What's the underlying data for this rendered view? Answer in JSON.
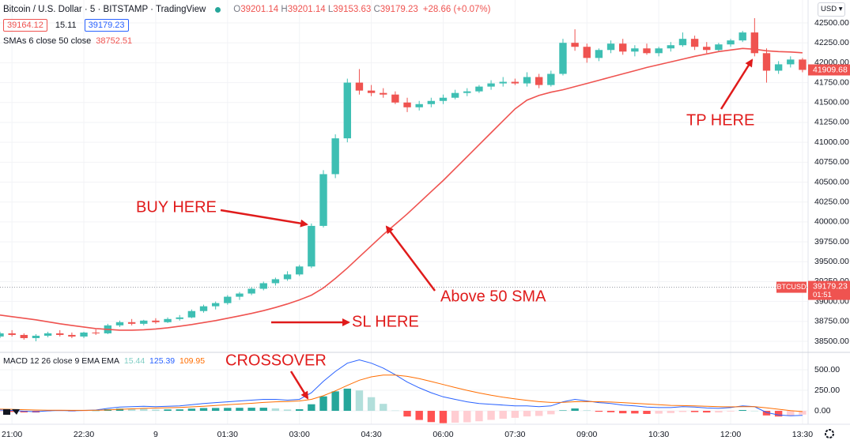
{
  "header": {
    "title": "Bitcoin / U.S. Dollar · 5 · BITSTAMP · TradingView",
    "ohlc": [
      [
        "O",
        "39201.14"
      ],
      [
        "H",
        "39201.14"
      ],
      [
        "L",
        "39153.63"
      ],
      [
        "C",
        "39179.23"
      ]
    ],
    "change": "+28.66 (+0.07%)",
    "bid": 39164.12,
    "spread": 15.11,
    "ask": 39179.23,
    "currency": "USD"
  },
  "chart_data": [
    {
      "type": "candlestick",
      "up_color": "#3ebfb3",
      "down_color": "#ef5350",
      "grid": true,
      "xlim": [
        -3,
        199.4
      ],
      "x": [
        -3,
        0,
        3,
        6,
        9,
        12,
        15,
        18,
        21,
        24,
        27,
        30,
        33,
        36,
        39,
        42,
        45,
        48,
        51,
        54,
        57,
        60,
        63,
        66,
        69,
        72,
        75,
        78,
        81,
        84,
        87,
        90,
        93,
        96,
        99,
        102,
        105,
        108,
        111,
        114,
        117,
        120,
        123,
        126,
        129,
        132,
        135,
        138,
        141,
        144,
        147,
        150,
        153,
        156,
        159,
        162,
        165,
        168,
        171,
        174,
        177,
        180,
        183,
        186,
        189,
        192,
        195,
        198
      ],
      "xticks": [
        {
          "value": 0,
          "label": "21:00"
        },
        {
          "value": 18,
          "label": "22:30"
        },
        {
          "value": 36,
          "label": "9"
        },
        {
          "value": 54,
          "label": "01:30"
        },
        {
          "value": 72,
          "label": "03:00"
        },
        {
          "value": 90,
          "label": "04:30"
        },
        {
          "value": 108,
          "label": "06:00"
        },
        {
          "value": 126,
          "label": "07:30"
        },
        {
          "value": 144,
          "label": "09:00"
        },
        {
          "value": 162,
          "label": "10:30"
        },
        {
          "value": 180,
          "label": "12:00"
        },
        {
          "value": 198,
          "label": "13:30"
        }
      ],
      "ylim": [
        38371,
        42788
      ],
      "yticks": [
        {
          "value": 38500,
          "label": "38500.00"
        },
        {
          "value": 38750,
          "label": "38750.00"
        },
        {
          "value": 39000,
          "label": "39000.00"
        },
        {
          "value": 39250,
          "label": "39250.00"
        },
        {
          "value": 39500,
          "label": "39500.00"
        },
        {
          "value": 39750,
          "label": "39750.00"
        },
        {
          "value": 40000,
          "label": "40000.00"
        },
        {
          "value": 40250,
          "label": "40250.00"
        },
        {
          "value": 40500,
          "label": "40500.00"
        },
        {
          "value": 40750,
          "label": "40750.00"
        },
        {
          "value": 41000,
          "label": "41000.00"
        },
        {
          "value": 41250,
          "label": "41250.00"
        },
        {
          "value": 41500,
          "label": "41500.00"
        },
        {
          "value": 41750,
          "label": "41750.00"
        },
        {
          "value": 42000,
          "label": "42000.00"
        },
        {
          "value": 42250,
          "label": "42250.00"
        },
        {
          "value": 42500,
          "label": "42500.00"
        }
      ],
      "candles": [
        [
          38560,
          38620,
          38540,
          38600
        ],
        [
          38600,
          38640,
          38560,
          38580
        ],
        [
          38580,
          38600,
          38520,
          38540
        ],
        [
          38540,
          38590,
          38500,
          38570
        ],
        [
          38570,
          38620,
          38550,
          38600
        ],
        [
          38600,
          38640,
          38560,
          38580
        ],
        [
          38580,
          38610,
          38540,
          38560
        ],
        [
          38560,
          38620,
          38540,
          38610
        ],
        [
          38610,
          38650,
          38580,
          38600
        ],
        [
          38600,
          38720,
          38590,
          38700
        ],
        [
          38700,
          38760,
          38680,
          38740
        ],
        [
          38740,
          38780,
          38700,
          38720
        ],
        [
          38720,
          38770,
          38700,
          38760
        ],
        [
          38760,
          38790,
          38720,
          38740
        ],
        [
          38740,
          38800,
          38730,
          38780
        ],
        [
          38780,
          38830,
          38760,
          38800
        ],
        [
          38800,
          38900,
          38790,
          38880
        ],
        [
          38880,
          38960,
          38860,
          38940
        ],
        [
          38940,
          39000,
          38900,
          38980
        ],
        [
          38980,
          39080,
          38960,
          39060
        ],
        [
          39060,
          39120,
          39020,
          39100
        ],
        [
          39100,
          39180,
          39080,
          39160
        ],
        [
          39160,
          39250,
          39140,
          39230
        ],
        [
          39230,
          39300,
          39200,
          39280
        ],
        [
          39280,
          39380,
          39260,
          39340
        ],
        [
          39340,
          39460,
          39320,
          39440
        ],
        [
          39440,
          39980,
          39420,
          39950
        ],
        [
          39950,
          40650,
          39930,
          40600
        ],
        [
          40600,
          41100,
          40550,
          41050
        ],
        [
          41050,
          41800,
          41000,
          41750
        ],
        [
          41750,
          41920,
          41600,
          41650
        ],
        [
          41650,
          41720,
          41580,
          41620
        ],
        [
          41620,
          41680,
          41560,
          41600
        ],
        [
          41600,
          41640,
          41480,
          41500
        ],
        [
          41500,
          41560,
          41380,
          41440
        ],
        [
          41440,
          41520,
          41400,
          41480
        ],
        [
          41480,
          41560,
          41440,
          41520
        ],
        [
          41520,
          41600,
          41480,
          41560
        ],
        [
          41560,
          41660,
          41540,
          41620
        ],
        [
          41620,
          41680,
          41580,
          41640
        ],
        [
          41640,
          41720,
          41620,
          41700
        ],
        [
          41700,
          41780,
          41660,
          41740
        ],
        [
          41740,
          41820,
          41700,
          41760
        ],
        [
          41760,
          41800,
          41720,
          41740
        ],
        [
          41740,
          41880,
          41700,
          41820
        ],
        [
          41820,
          41860,
          41680,
          41720
        ],
        [
          41720,
          41900,
          41700,
          41860
        ],
        [
          41860,
          42300,
          41840,
          42250
        ],
        [
          42250,
          42420,
          42150,
          42200
        ],
        [
          42200,
          42240,
          42000,
          42060
        ],
        [
          42060,
          42180,
          42020,
          42160
        ],
        [
          42160,
          42280,
          42120,
          42240
        ],
        [
          42240,
          42300,
          42100,
          42140
        ],
        [
          42140,
          42220,
          42080,
          42180
        ],
        [
          42180,
          42240,
          42100,
          42120
        ],
        [
          42120,
          42200,
          42080,
          42180
        ],
        [
          42180,
          42260,
          42140,
          42220
        ],
        [
          42220,
          42380,
          42200,
          42300
        ],
        [
          42300,
          42340,
          42160,
          42200
        ],
        [
          42200,
          42260,
          42120,
          42160
        ],
        [
          42160,
          42250,
          42140,
          42230
        ],
        [
          42230,
          42300,
          42200,
          42280
        ],
        [
          42280,
          42400,
          42260,
          42380
        ],
        [
          42380,
          42560,
          42080,
          42120
        ],
        [
          42120,
          42180,
          41750,
          41900
        ],
        [
          41900,
          42020,
          41860,
          41980
        ],
        [
          41980,
          42080,
          41940,
          42040
        ],
        [
          42040,
          42060,
          41880,
          41910
        ]
      ],
      "series": [
        {
          "name": "SMAs 6 close 50 close",
          "color": "#ef5350",
          "last": 38752.51,
          "values": [
            38830,
            38810,
            38790,
            38770,
            38745,
            38720,
            38700,
            38680,
            38660,
            38650,
            38640,
            38640,
            38645,
            38655,
            38670,
            38690,
            38710,
            38735,
            38760,
            38790,
            38820,
            38850,
            38885,
            38925,
            38970,
            39020,
            39080,
            39170,
            39290,
            39420,
            39560,
            39700,
            39840,
            39970,
            40100,
            40240,
            40380,
            40520,
            40670,
            40820,
            40970,
            41120,
            41270,
            41420,
            41530,
            41590,
            41630,
            41660,
            41700,
            41740,
            41780,
            41820,
            41860,
            41900,
            41940,
            41975,
            42010,
            42045,
            42080,
            42110,
            42140,
            42160,
            42180,
            42170,
            42150,
            42140,
            42135,
            42125
          ]
        }
      ],
      "price_tags": [
        41909.68,
        39179.23
      ],
      "symbol": "BTCUSD",
      "countdown": "01:51",
      "annotations": [
        "BUY HERE",
        "TP HERE",
        "Above 50 SMA",
        "SL HERE"
      ]
    },
    {
      "type": "macd",
      "title": "MACD 12 26 close 9 EMA EMA",
      "grid": true,
      "ylim": [
        -144,
        702
      ],
      "yticks": [
        {
          "value": 0,
          "label": "0.00"
        },
        {
          "value": 250,
          "label": "250.00"
        },
        {
          "value": 500,
          "label": "500.00"
        }
      ],
      "histogram": {
        "last": 15.44,
        "colors": {
          "grow_above": "#26a69a",
          "fall_above": "#b2dfdb",
          "grow_below": "#ffcdd2",
          "fall_below": "#ff5252"
        },
        "values": [
          -10,
          -13,
          -19,
          -20,
          -8,
          -2,
          -6,
          -1,
          3,
          19,
          27,
          26,
          25,
          16,
          17,
          18,
          27,
          34,
          35,
          36,
          37,
          38,
          38,
          30,
          16,
          20,
          80,
          176,
          237,
          270,
          248,
          166,
          85,
          4,
          -69,
          -111,
          -137,
          -150,
          -144,
          -139,
          -127,
          -110,
          -96,
          -85,
          -68,
          -62,
          -42,
          6,
          29,
          7,
          -11,
          -17,
          -30,
          -32,
          -38,
          -34,
          -27,
          -14,
          -15,
          -20,
          -20,
          -8,
          10,
          0,
          -56,
          -69,
          -63,
          -46
        ]
      },
      "series": [
        {
          "color": "#2962ff",
          "last": 125.39,
          "values": [
            10,
            5,
            -5,
            -10,
            0,
            5,
            0,
            5,
            10,
            30,
            45,
            50,
            55,
            50,
            55,
            60,
            75,
            90,
            100,
            110,
            120,
            130,
            140,
            140,
            130,
            140,
            220,
            360,
            480,
            580,
            620,
            580,
            520,
            440,
            350,
            280,
            220,
            170,
            140,
            110,
            90,
            80,
            70,
            60,
            60,
            50,
            60,
            110,
            140,
            120,
            100,
            90,
            70,
            60,
            45,
            40,
            40,
            50,
            45,
            35,
            30,
            40,
            60,
            50,
            -20,
            -50,
            -60,
            -55
          ]
        },
        {
          "color": "#ff6d00",
          "last": 109.95,
          "values": [
            20,
            18,
            14,
            10,
            8,
            7,
            6,
            6,
            7,
            11,
            18,
            24,
            30,
            34,
            38,
            42,
            48,
            56,
            65,
            74,
            83,
            92,
            102,
            110,
            114,
            120,
            140,
            184,
            243,
            310,
            372,
            414,
            435,
            436,
            419,
            391,
            357,
            320,
            284,
            249,
            217,
            190,
            166,
            145,
            128,
            112,
            102,
            104,
            111,
            113,
            111,
            107,
            100,
            92,
            83,
            74,
            67,
            64,
            60,
            55,
            50,
            48,
            50,
            50,
            36,
            19,
            3,
            -9
          ]
        }
      ],
      "annotations": [
        "CROSSOVER"
      ]
    }
  ]
}
